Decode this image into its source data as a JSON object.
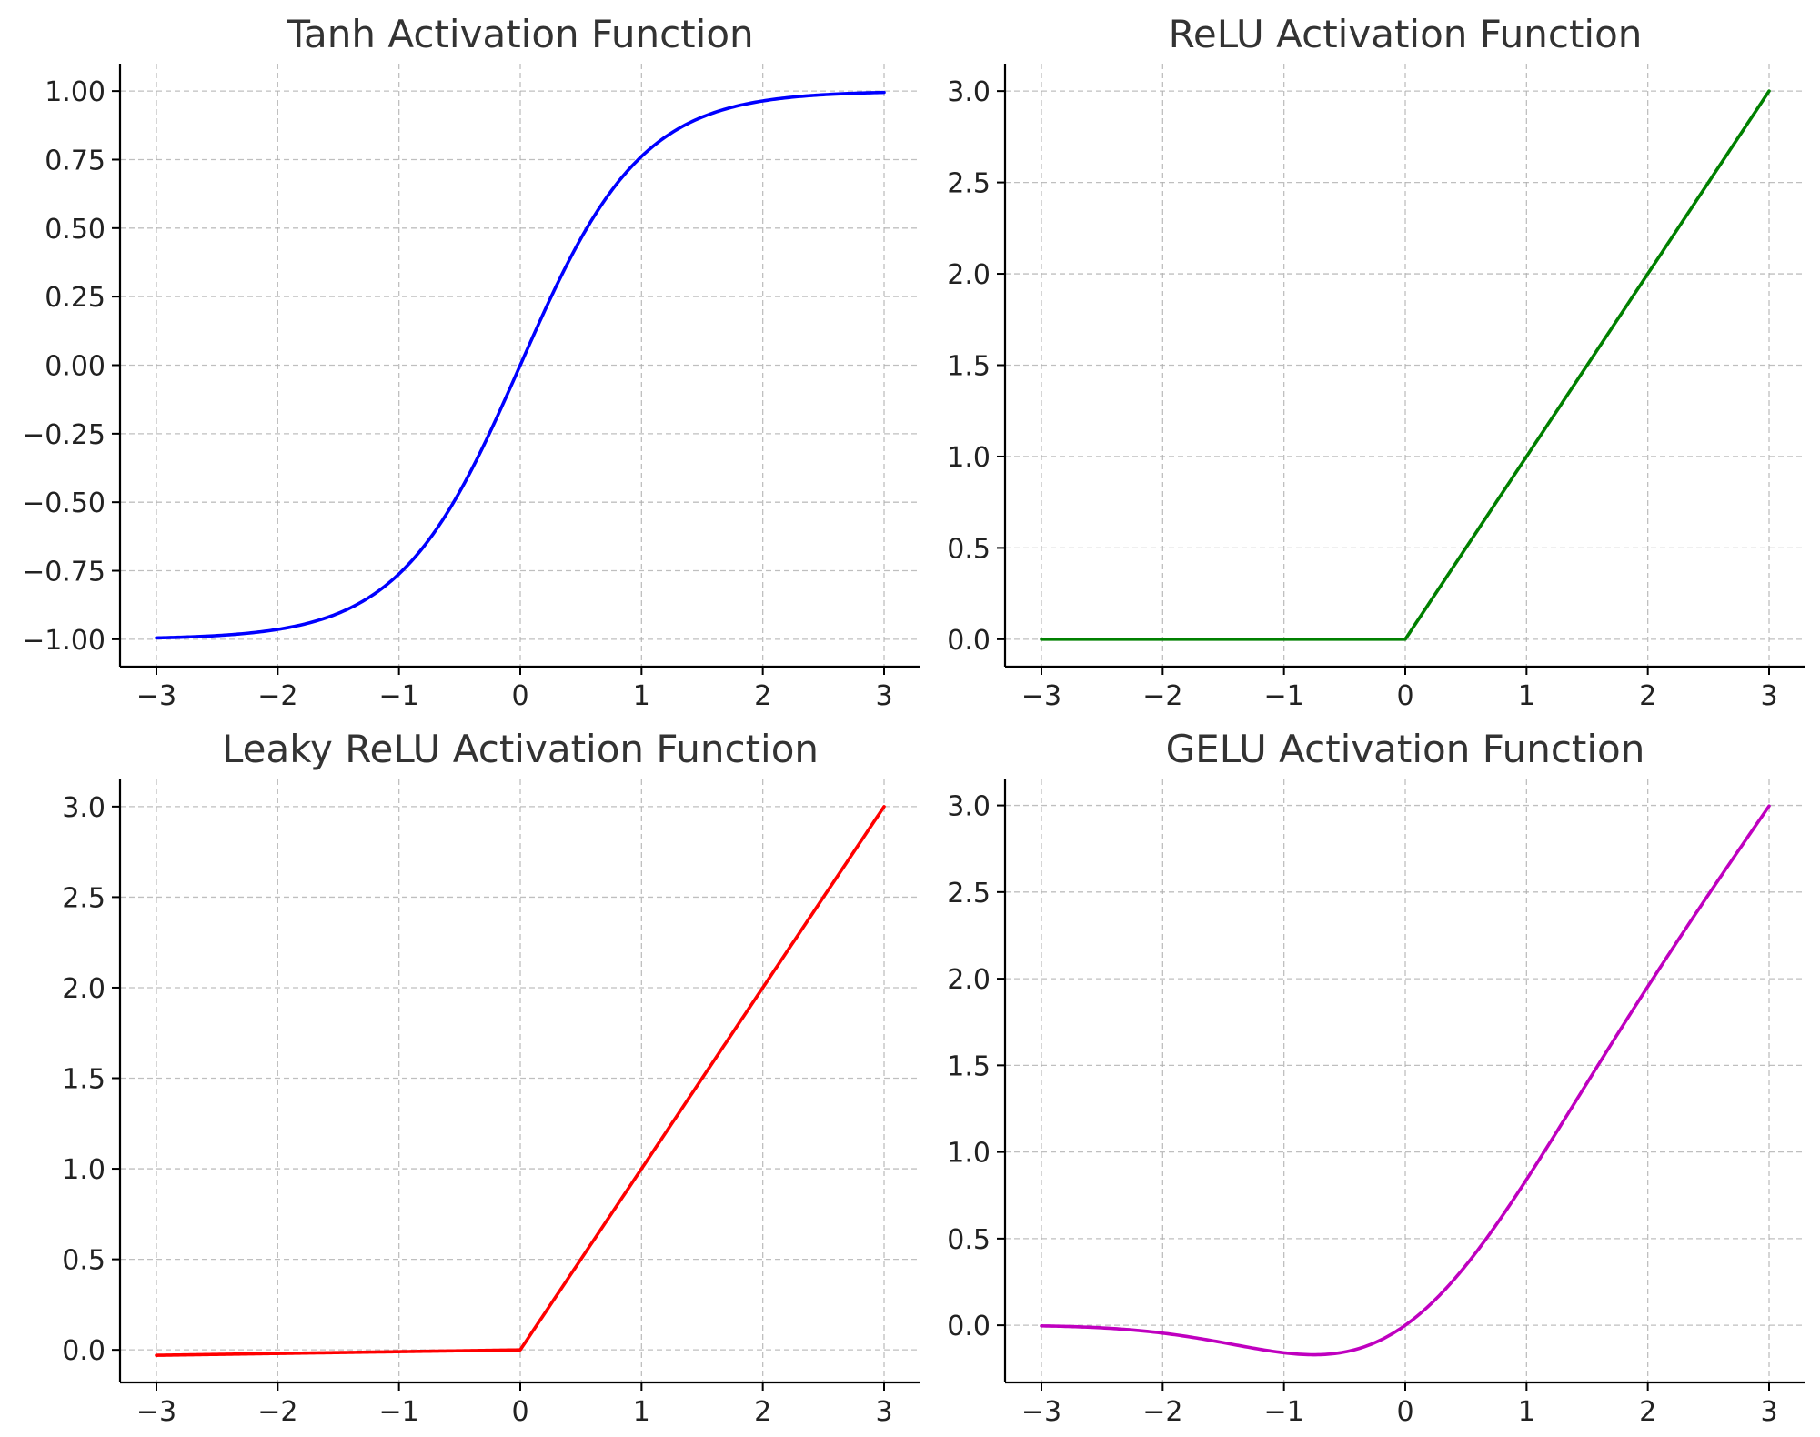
{
  "chart_data": [
    {
      "type": "line",
      "title": "Tanh Activation Function",
      "xlabel": "",
      "ylabel": "",
      "function": "tanh",
      "x_range": [
        -3,
        3
      ],
      "xlim": [
        -3.3,
        3.3
      ],
      "ylim": [
        -1.1,
        1.1
      ],
      "xticks": [
        -3,
        -2,
        -1,
        0,
        1,
        2,
        3
      ],
      "xtick_labels": [
        "−3",
        "−2",
        "−1",
        "0",
        "1",
        "2",
        "3"
      ],
      "yticks": [
        -1.0,
        -0.75,
        -0.5,
        -0.25,
        0.0,
        0.25,
        0.5,
        0.75,
        1.0
      ],
      "ytick_labels": [
        "−1.00",
        "−0.75",
        "−0.50",
        "−0.25",
        "0.00",
        "0.25",
        "0.50",
        "0.75",
        "1.00"
      ],
      "color": "#0000ff",
      "grid": true,
      "series": [
        {
          "x": [
            -3,
            -2.5,
            -2,
            -1.5,
            -1,
            -0.5,
            0,
            0.5,
            1,
            1.5,
            2,
            2.5,
            3
          ],
          "y": [
            -0.995,
            -0.987,
            -0.964,
            -0.905,
            -0.762,
            -0.462,
            0.0,
            0.462,
            0.762,
            0.905,
            0.964,
            0.987,
            0.995
          ]
        }
      ]
    },
    {
      "type": "line",
      "title": "ReLU Activation Function",
      "xlabel": "",
      "ylabel": "",
      "function": "relu",
      "x_range": [
        -3,
        3
      ],
      "xlim": [
        -3.3,
        3.3
      ],
      "ylim": [
        -0.15,
        3.15
      ],
      "xticks": [
        -3,
        -2,
        -1,
        0,
        1,
        2,
        3
      ],
      "xtick_labels": [
        "−3",
        "−2",
        "−1",
        "0",
        "1",
        "2",
        "3"
      ],
      "yticks": [
        0.0,
        0.5,
        1.0,
        1.5,
        2.0,
        2.5,
        3.0
      ],
      "ytick_labels": [
        "0.0",
        "0.5",
        "1.0",
        "1.5",
        "2.0",
        "2.5",
        "3.0"
      ],
      "color": "#008000",
      "grid": true,
      "series": [
        {
          "x": [
            -3,
            0,
            3
          ],
          "y": [
            0,
            0,
            3
          ]
        }
      ]
    },
    {
      "type": "line",
      "title": "Leaky ReLU Activation Function",
      "xlabel": "",
      "ylabel": "",
      "function": "leaky_relu",
      "negative_slope": 0.01,
      "x_range": [
        -3,
        3
      ],
      "xlim": [
        -3.3,
        3.3
      ],
      "ylim": [
        -0.18,
        3.15
      ],
      "xticks": [
        -3,
        -2,
        -1,
        0,
        1,
        2,
        3
      ],
      "xtick_labels": [
        "−3",
        "−2",
        "−1",
        "0",
        "1",
        "2",
        "3"
      ],
      "yticks": [
        0.0,
        0.5,
        1.0,
        1.5,
        2.0,
        2.5,
        3.0
      ],
      "ytick_labels": [
        "0.0",
        "0.5",
        "1.0",
        "1.5",
        "2.0",
        "2.5",
        "3.0"
      ],
      "color": "#ff0000",
      "grid": true,
      "series": [
        {
          "x": [
            -3,
            0,
            3
          ],
          "y": [
            -0.03,
            0,
            3
          ]
        }
      ]
    },
    {
      "type": "line",
      "title": "GELU Activation Function",
      "xlabel": "",
      "ylabel": "",
      "function": "gelu",
      "x_range": [
        -3,
        3
      ],
      "xlim": [
        -3.3,
        3.3
      ],
      "ylim": [
        -0.33,
        3.15
      ],
      "xticks": [
        -3,
        -2,
        -1,
        0,
        1,
        2,
        3
      ],
      "xtick_labels": [
        "−3",
        "−2",
        "−1",
        "0",
        "1",
        "2",
        "3"
      ],
      "yticks": [
        0.0,
        0.5,
        1.0,
        1.5,
        2.0,
        2.5,
        3.0
      ],
      "ytick_labels": [
        "0.0",
        "0.5",
        "1.0",
        "1.5",
        "2.0",
        "2.5",
        "3.0"
      ],
      "color": "#bf00bf",
      "grid": true,
      "series": [
        {
          "x": [
            -3,
            -2.5,
            -2,
            -1.5,
            -1,
            -0.75,
            -0.5,
            0,
            0.5,
            1,
            1.5,
            2,
            2.5,
            3
          ],
          "y": [
            -0.004,
            -0.015,
            -0.045,
            -0.1,
            -0.159,
            -0.17,
            -0.154,
            0.0,
            0.346,
            0.841,
            1.4,
            1.955,
            2.485,
            2.996
          ]
        }
      ]
    }
  ]
}
